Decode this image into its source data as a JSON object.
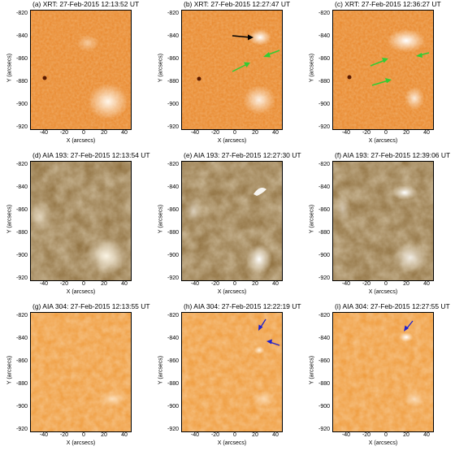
{
  "axes": {
    "xlabel": "X (arcsecs)",
    "ylabel": "Y (arcsecs)",
    "xticks": [
      "-40",
      "-20",
      "0",
      "20",
      "40"
    ],
    "yticks": [
      "-820",
      "-840",
      "-860",
      "-880",
      "-900",
      "-920"
    ]
  },
  "panels": [
    {
      "id": "a",
      "title": "(a) XRT: 27-Feb-2015 12:13:52 UT",
      "type": "xrt",
      "base": "#e8862a",
      "accent": "#fbe3c4"
    },
    {
      "id": "b",
      "title": "(b) XRT: 27-Feb-2015 12:27:47 UT",
      "type": "xrt",
      "base": "#e8862a",
      "accent": "#fbe3c4"
    },
    {
      "id": "c",
      "title": "(c) XRT: 27-Feb-2015 12:36:27 UT",
      "type": "xrt",
      "base": "#e8862a",
      "accent": "#fbe3c4"
    },
    {
      "id": "d",
      "title": "(d) AIA 193: 27-Feb-2015 12:13:54 UT",
      "type": "aia193",
      "base": "#9a7a45",
      "accent": "#efe2c6"
    },
    {
      "id": "e",
      "title": "(e) AIA 193: 27-Feb-2015 12:27:30 UT",
      "type": "aia193",
      "base": "#9a7a45",
      "accent": "#efe2c6"
    },
    {
      "id": "f",
      "title": "(f) AIA 193: 27-Feb-2015 12:39:06 UT",
      "type": "aia193",
      "base": "#9a7a45",
      "accent": "#efe2c6"
    },
    {
      "id": "g",
      "title": "(g) AIA 304: 27-Feb-2015 12:13:55 UT",
      "type": "aia304",
      "base": "#ef9a3a",
      "accent": "#fbd7a8"
    },
    {
      "id": "h",
      "title": "(h) AIA 304: 27-Feb-2015 12:22:19 UT",
      "type": "aia304",
      "base": "#ef9a3a",
      "accent": "#fbd7a8"
    },
    {
      "id": "i",
      "title": "(i) AIA 304: 27-Feb-2015 12:27:55 UT",
      "type": "aia304",
      "base": "#ef9a3a",
      "accent": "#fbd7a8"
    }
  ],
  "arrow_colors": {
    "black": "#000000",
    "green": "#33cc33",
    "blue": "#2020cc"
  }
}
